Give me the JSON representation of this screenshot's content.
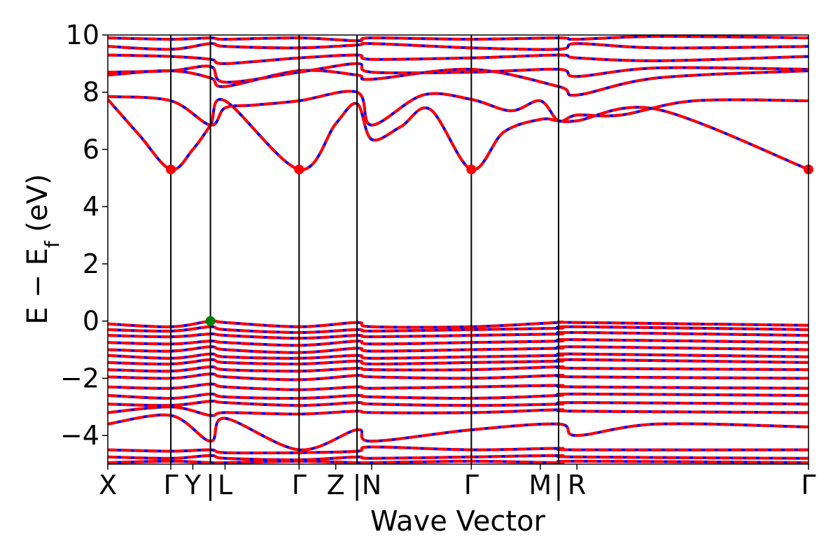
{
  "chart_data": {
    "type": "line",
    "xlabel": "Wave Vector",
    "ylabel": "E − E_f (eV)",
    "ylabel_parts": {
      "main": "E − E",
      "sub": "f",
      "unit": " (eV)"
    },
    "ylim": [
      -5,
      10
    ],
    "yticks": [
      -4,
      -2,
      0,
      2,
      4,
      6,
      8,
      10
    ],
    "ytick_labels": [
      "−4",
      "−2",
      "0",
      "2",
      "4",
      "6",
      "8",
      "10"
    ],
    "xlim": [
      0,
      9.56
    ],
    "kpoint_labels": [
      {
        "x": 0.0,
        "label": "X"
      },
      {
        "x": 0.86,
        "label": "Γ"
      },
      {
        "x": 1.16,
        "label": "Y"
      },
      {
        "x": 1.4,
        "label": "|"
      },
      {
        "x": 1.6,
        "label": "L"
      },
      {
        "x": 2.61,
        "label": "Γ"
      },
      {
        "x": 3.11,
        "label": "Z"
      },
      {
        "x": 3.4,
        "label": "|"
      },
      {
        "x": 3.6,
        "label": "N"
      },
      {
        "x": 4.96,
        "label": "Γ"
      },
      {
        "x": 5.9,
        "label": "M"
      },
      {
        "x": 6.15,
        "label": "|"
      },
      {
        "x": 6.4,
        "label": "R"
      },
      {
        "x": 9.56,
        "label": "Γ"
      }
    ],
    "segment_boundaries": [
      0.86,
      1.4,
      2.61,
      3.4,
      4.96,
      6.15
    ],
    "cbm_points": [
      {
        "x": 0.86,
        "y": 5.3
      },
      {
        "x": 2.61,
        "y": 5.3
      },
      {
        "x": 4.96,
        "y": 5.3
      },
      {
        "x": 9.56,
        "y": 5.3
      }
    ],
    "vbm_points": [
      {
        "x": 1.4,
        "y": 0.0
      }
    ],
    "series": [
      {
        "color": "#0000ff",
        "style": "solid"
      },
      {
        "color": "#ff0000",
        "style": "dashed"
      }
    ],
    "colors": {
      "cbm_marker": "#ff0000",
      "vbm_marker": "#008000",
      "vline": "#000000"
    },
    "conduction_bands": [
      {
        "p": [
          [
            0,
            7.75
          ],
          [
            0.43,
            6.5
          ],
          [
            0.86,
            5.3
          ],
          [
            1.16,
            6.0
          ],
          [
            1.4,
            6.85
          ],
          [
            1.6,
            7.7
          ],
          [
            2.61,
            5.3
          ],
          [
            3.11,
            6.9
          ],
          [
            3.4,
            7.6
          ],
          [
            3.6,
            6.35
          ],
          [
            4.0,
            6.8
          ],
          [
            4.4,
            7.4
          ],
          [
            4.96,
            5.3
          ],
          [
            5.4,
            6.6
          ],
          [
            5.9,
            7.05
          ],
          [
            6.15,
            7.0
          ],
          [
            6.4,
            7.0
          ],
          [
            7.5,
            7.4
          ],
          [
            9.56,
            5.3
          ]
        ]
      },
      {
        "p": [
          [
            0,
            7.85
          ],
          [
            0.86,
            7.7
          ],
          [
            1.4,
            6.85
          ],
          [
            1.6,
            7.45
          ],
          [
            2.0,
            7.55
          ],
          [
            2.61,
            7.7
          ],
          [
            3.4,
            8.0
          ],
          [
            3.6,
            6.85
          ],
          [
            4.3,
            7.9
          ],
          [
            4.96,
            7.75
          ],
          [
            5.5,
            7.35
          ],
          [
            5.9,
            7.7
          ],
          [
            6.15,
            7.0
          ],
          [
            6.4,
            7.2
          ],
          [
            7.0,
            7.2
          ],
          [
            8.0,
            7.7
          ],
          [
            9.56,
            7.7
          ]
        ]
      },
      {
        "p": [
          [
            0,
            8.6
          ],
          [
            0.86,
            8.75
          ],
          [
            1.4,
            8.5
          ],
          [
            1.6,
            8.2
          ],
          [
            2.61,
            8.75
          ],
          [
            3.4,
            8.6
          ],
          [
            3.6,
            8.45
          ],
          [
            4.96,
            8.8
          ],
          [
            6.15,
            8.2
          ],
          [
            6.4,
            7.9
          ],
          [
            7.5,
            8.5
          ],
          [
            9.56,
            8.75
          ]
        ]
      },
      {
        "p": [
          [
            0,
            8.7
          ],
          [
            0.86,
            8.75
          ],
          [
            1.4,
            8.9
          ],
          [
            1.6,
            8.35
          ],
          [
            2.61,
            8.7
          ],
          [
            3.4,
            9.0
          ],
          [
            3.6,
            8.7
          ],
          [
            4.96,
            8.7
          ],
          [
            6.15,
            8.8
          ],
          [
            6.4,
            8.55
          ],
          [
            7.5,
            8.85
          ],
          [
            9.56,
            8.8
          ]
        ]
      },
      {
        "p": [
          [
            0,
            9.3
          ],
          [
            0.86,
            9.25
          ],
          [
            1.4,
            9.15
          ],
          [
            1.6,
            9.0
          ],
          [
            2.61,
            9.2
          ],
          [
            3.4,
            9.3
          ],
          [
            3.6,
            9.15
          ],
          [
            4.96,
            9.2
          ],
          [
            6.15,
            9.3
          ],
          [
            6.4,
            9.2
          ],
          [
            7.5,
            9.1
          ],
          [
            9.56,
            9.25
          ]
        ]
      },
      {
        "p": [
          [
            0,
            9.6
          ],
          [
            0.86,
            9.5
          ],
          [
            1.4,
            9.7
          ],
          [
            1.6,
            9.6
          ],
          [
            2.61,
            9.55
          ],
          [
            3.4,
            9.65
          ],
          [
            3.6,
            9.7
          ],
          [
            4.96,
            9.55
          ],
          [
            6.15,
            9.5
          ],
          [
            6.4,
            9.7
          ],
          [
            7.5,
            9.55
          ],
          [
            9.56,
            9.6
          ]
        ]
      },
      {
        "p": [
          [
            0,
            9.9
          ],
          [
            0.86,
            9.85
          ],
          [
            1.4,
            9.9
          ],
          [
            1.6,
            9.85
          ],
          [
            2.61,
            9.9
          ],
          [
            3.4,
            9.8
          ],
          [
            3.6,
            9.9
          ],
          [
            4.96,
            9.85
          ],
          [
            6.15,
            9.9
          ],
          [
            6.4,
            9.85
          ],
          [
            7.5,
            9.95
          ],
          [
            9.56,
            9.9
          ]
        ]
      }
    ],
    "valence_bands": [
      {
        "p": [
          [
            0,
            -0.1
          ],
          [
            0.86,
            -0.2
          ],
          [
            1.4,
            0.0
          ],
          [
            1.6,
            -0.05
          ],
          [
            2.61,
            -0.2
          ],
          [
            3.4,
            -0.05
          ],
          [
            3.6,
            -0.2
          ],
          [
            4.96,
            -0.2
          ],
          [
            6.15,
            -0.05
          ],
          [
            6.4,
            -0.05
          ],
          [
            9.56,
            -0.15
          ]
        ]
      },
      {
        "p": [
          [
            0,
            -0.3
          ],
          [
            0.86,
            -0.35
          ],
          [
            1.4,
            -0.2
          ],
          [
            1.6,
            -0.3
          ],
          [
            2.61,
            -0.4
          ],
          [
            3.4,
            -0.3
          ],
          [
            3.6,
            -0.35
          ],
          [
            4.96,
            -0.3
          ],
          [
            6.15,
            -0.25
          ],
          [
            6.4,
            -0.2
          ],
          [
            9.56,
            -0.3
          ]
        ]
      },
      {
        "p": [
          [
            0,
            -0.5
          ],
          [
            0.86,
            -0.55
          ],
          [
            1.4,
            -0.45
          ],
          [
            1.6,
            -0.5
          ],
          [
            2.61,
            -0.6
          ],
          [
            3.4,
            -0.5
          ],
          [
            3.6,
            -0.55
          ],
          [
            4.96,
            -0.5
          ],
          [
            6.15,
            -0.45
          ],
          [
            6.4,
            -0.4
          ],
          [
            9.56,
            -0.5
          ]
        ]
      },
      {
        "p": [
          [
            0,
            -0.75
          ],
          [
            0.86,
            -0.8
          ],
          [
            1.4,
            -0.7
          ],
          [
            1.6,
            -0.75
          ],
          [
            2.61,
            -0.85
          ],
          [
            3.4,
            -0.7
          ],
          [
            3.6,
            -0.8
          ],
          [
            4.96,
            -0.75
          ],
          [
            6.15,
            -0.7
          ],
          [
            6.4,
            -0.65
          ],
          [
            9.56,
            -0.75
          ]
        ]
      },
      {
        "p": [
          [
            0,
            -1.0
          ],
          [
            0.86,
            -1.05
          ],
          [
            1.4,
            -0.9
          ],
          [
            1.6,
            -1.0
          ],
          [
            2.61,
            -1.1
          ],
          [
            3.4,
            -0.95
          ],
          [
            3.6,
            -1.05
          ],
          [
            4.96,
            -1.0
          ],
          [
            6.15,
            -0.95
          ],
          [
            6.4,
            -0.9
          ],
          [
            9.56,
            -1.0
          ]
        ]
      },
      {
        "p": [
          [
            0,
            -1.2
          ],
          [
            0.86,
            -1.3
          ],
          [
            1.4,
            -1.15
          ],
          [
            1.6,
            -1.25
          ],
          [
            2.61,
            -1.3
          ],
          [
            3.4,
            -1.2
          ],
          [
            3.6,
            -1.3
          ],
          [
            4.96,
            -1.25
          ],
          [
            6.15,
            -1.2
          ],
          [
            6.4,
            -1.15
          ],
          [
            9.56,
            -1.25
          ]
        ]
      },
      {
        "p": [
          [
            0,
            -1.45
          ],
          [
            0.86,
            -1.5
          ],
          [
            1.4,
            -1.35
          ],
          [
            1.6,
            -1.45
          ],
          [
            2.61,
            -1.5
          ],
          [
            3.4,
            -1.4
          ],
          [
            3.6,
            -1.5
          ],
          [
            4.96,
            -1.45
          ],
          [
            6.15,
            -1.4
          ],
          [
            6.4,
            -1.35
          ],
          [
            9.56,
            -1.45
          ]
        ]
      },
      {
        "p": [
          [
            0,
            -1.7
          ],
          [
            0.86,
            -1.75
          ],
          [
            1.4,
            -1.6
          ],
          [
            1.6,
            -1.7
          ],
          [
            2.61,
            -1.75
          ],
          [
            3.4,
            -1.65
          ],
          [
            3.6,
            -1.7
          ],
          [
            4.96,
            -1.7
          ],
          [
            6.15,
            -1.6
          ],
          [
            6.4,
            -1.65
          ],
          [
            9.56,
            -1.7
          ]
        ]
      },
      {
        "p": [
          [
            0,
            -1.95
          ],
          [
            0.86,
            -2.0
          ],
          [
            1.4,
            -1.85
          ],
          [
            1.6,
            -1.95
          ],
          [
            2.61,
            -2.05
          ],
          [
            3.4,
            -1.9
          ],
          [
            3.6,
            -1.95
          ],
          [
            4.96,
            -2.0
          ],
          [
            6.15,
            -1.9
          ],
          [
            6.4,
            -1.95
          ],
          [
            9.56,
            -2.0
          ]
        ]
      },
      {
        "p": [
          [
            0,
            -2.3
          ],
          [
            0.86,
            -2.35
          ],
          [
            1.4,
            -2.2
          ],
          [
            1.6,
            -2.3
          ],
          [
            2.61,
            -2.4
          ],
          [
            3.4,
            -2.3
          ],
          [
            3.6,
            -2.35
          ],
          [
            4.96,
            -2.3
          ],
          [
            6.15,
            -2.25
          ],
          [
            6.4,
            -2.3
          ],
          [
            9.56,
            -2.35
          ]
        ]
      },
      {
        "p": [
          [
            0,
            -2.6
          ],
          [
            0.86,
            -2.7
          ],
          [
            1.4,
            -2.55
          ],
          [
            1.6,
            -2.65
          ],
          [
            2.61,
            -2.7
          ],
          [
            3.4,
            -2.6
          ],
          [
            3.6,
            -2.65
          ],
          [
            4.96,
            -2.7
          ],
          [
            6.15,
            -2.6
          ],
          [
            6.4,
            -2.55
          ],
          [
            9.56,
            -2.6
          ]
        ]
      },
      {
        "p": [
          [
            0,
            -2.9
          ],
          [
            0.86,
            -2.95
          ],
          [
            1.4,
            -2.8
          ],
          [
            1.6,
            -2.85
          ],
          [
            2.61,
            -2.95
          ],
          [
            3.4,
            -2.85
          ],
          [
            3.6,
            -2.9
          ],
          [
            4.96,
            -2.95
          ],
          [
            6.15,
            -2.9
          ],
          [
            6.4,
            -2.85
          ],
          [
            9.56,
            -2.9
          ]
        ]
      },
      {
        "p": [
          [
            0,
            -3.2
          ],
          [
            0.86,
            -3.0
          ],
          [
            1.4,
            -3.3
          ],
          [
            1.6,
            -3.2
          ],
          [
            2.61,
            -3.25
          ],
          [
            3.4,
            -3.15
          ],
          [
            3.6,
            -3.2
          ],
          [
            4.96,
            -3.2
          ],
          [
            6.15,
            -3.1
          ],
          [
            6.4,
            -3.15
          ],
          [
            9.56,
            -3.2
          ]
        ]
      },
      {
        "p": [
          [
            0,
            -3.6
          ],
          [
            0.86,
            -3.3
          ],
          [
            1.4,
            -4.2
          ],
          [
            1.6,
            -3.4
          ],
          [
            2.61,
            -4.5
          ],
          [
            3.4,
            -3.8
          ],
          [
            3.6,
            -4.2
          ],
          [
            4.96,
            -3.8
          ],
          [
            6.15,
            -3.6
          ],
          [
            6.4,
            -4.0
          ],
          [
            7.5,
            -3.6
          ],
          [
            9.56,
            -3.7
          ]
        ]
      },
      {
        "p": [
          [
            0,
            -4.5
          ],
          [
            0.86,
            -4.55
          ],
          [
            1.4,
            -4.5
          ],
          [
            1.6,
            -4.6
          ],
          [
            2.61,
            -4.6
          ],
          [
            3.4,
            -4.55
          ],
          [
            3.6,
            -4.4
          ],
          [
            4.96,
            -4.5
          ],
          [
            6.15,
            -4.45
          ],
          [
            6.4,
            -4.5
          ],
          [
            9.56,
            -4.5
          ]
        ]
      },
      {
        "p": [
          [
            0,
            -4.75
          ],
          [
            0.86,
            -4.8
          ],
          [
            1.4,
            -4.7
          ],
          [
            1.6,
            -4.8
          ],
          [
            2.61,
            -4.85
          ],
          [
            3.4,
            -4.75
          ],
          [
            3.6,
            -4.8
          ],
          [
            4.96,
            -4.75
          ],
          [
            6.15,
            -4.7
          ],
          [
            6.4,
            -4.75
          ],
          [
            9.56,
            -4.8
          ]
        ]
      },
      {
        "p": [
          [
            0,
            -4.95
          ],
          [
            0.86,
            -4.9
          ],
          [
            1.4,
            -4.95
          ],
          [
            1.6,
            -4.95
          ],
          [
            2.61,
            -4.9
          ],
          [
            3.4,
            -4.95
          ],
          [
            3.6,
            -4.95
          ],
          [
            4.96,
            -4.9
          ],
          [
            6.15,
            -4.95
          ],
          [
            6.4,
            -4.9
          ],
          [
            9.56,
            -4.95
          ]
        ]
      }
    ]
  }
}
